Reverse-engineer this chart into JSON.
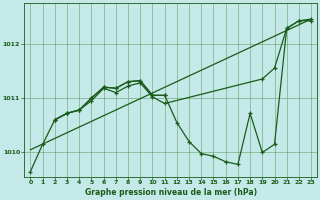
{
  "title": "Graphe pression niveau de la mer (hPa)",
  "bg_color": "#c5e8e8",
  "grid_color": "#4d8f4d",
  "line_color": "#1a5c1a",
  "xlim": [
    -0.5,
    23.5
  ],
  "ylim": [
    1009.55,
    1012.75
  ],
  "yticks": [
    1010,
    1011,
    1012
  ],
  "xticks": [
    0,
    1,
    2,
    3,
    4,
    5,
    6,
    7,
    8,
    9,
    10,
    11,
    12,
    13,
    14,
    15,
    16,
    17,
    18,
    19,
    20,
    21,
    22,
    23
  ],
  "series_main_x": [
    0,
    1,
    2,
    3,
    4,
    5,
    6,
    7,
    8,
    9,
    10,
    11,
    12,
    13,
    14,
    15,
    16,
    17,
    18,
    19,
    20,
    21,
    22,
    23
  ],
  "series_main_y": [
    1009.65,
    1010.15,
    1010.6,
    1010.72,
    1010.78,
    1011.0,
    1011.2,
    1011.18,
    1011.3,
    1011.32,
    1011.05,
    1011.05,
    1010.55,
    1010.2,
    1009.98,
    1009.93,
    1009.83,
    1009.78,
    1010.72,
    1010.0,
    1010.15,
    1012.28,
    1012.42,
    1012.42
  ],
  "series_b_x": [
    2,
    3,
    4,
    5,
    6,
    7,
    8,
    9,
    10,
    11,
    19,
    20,
    21,
    22,
    23
  ],
  "series_b_y": [
    1010.6,
    1010.72,
    1010.78,
    1010.95,
    1011.18,
    1011.1,
    1011.22,
    1011.28,
    1011.02,
    1010.9,
    1011.35,
    1011.55,
    1012.28,
    1012.42,
    1012.45
  ],
  "series_c_x": [
    2,
    3,
    4,
    5,
    6,
    7,
    8,
    9,
    10,
    11
  ],
  "series_c_y": [
    1010.6,
    1010.72,
    1010.78,
    1011.0,
    1011.2,
    1011.18,
    1011.3,
    1011.32,
    1011.05,
    1011.05
  ],
  "trend_x": [
    0,
    23
  ],
  "trend_y": [
    1010.05,
    1012.45
  ]
}
